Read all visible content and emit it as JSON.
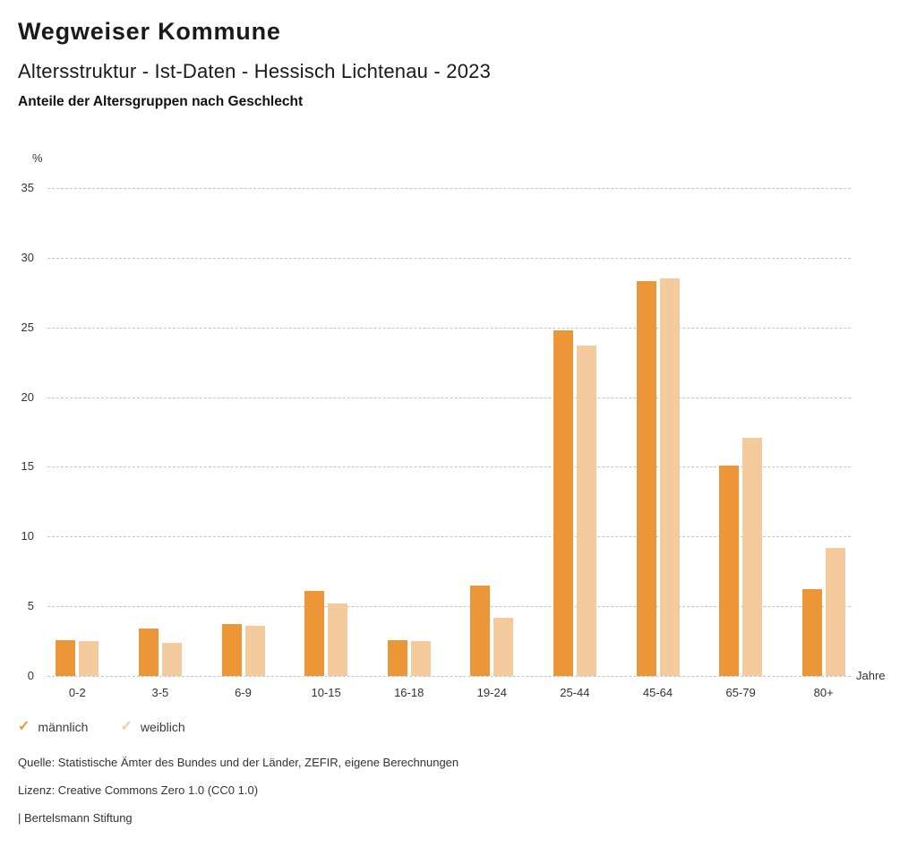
{
  "header": {
    "title": "Wegweiser Kommune",
    "subtitle": "Altersstruktur - Ist-Daten - Hessisch Lichtenau - 2023",
    "description": "Anteile der Altersgruppen nach Geschlecht"
  },
  "chart_data": {
    "type": "bar",
    "title": "Anteile der Altersgruppen nach Geschlecht",
    "categories": [
      "0-2",
      "3-5",
      "6-9",
      "10-15",
      "16-18",
      "19-24",
      "25-44",
      "45-64",
      "65-79",
      "80+"
    ],
    "series": [
      {
        "name": "männlich",
        "color": "#EC9637",
        "values": [
          2.6,
          3.4,
          3.7,
          6.1,
          2.6,
          6.5,
          24.8,
          28.3,
          15.1,
          6.2
        ]
      },
      {
        "name": "weiblich",
        "color": "#F4CB9C",
        "values": [
          2.5,
          2.4,
          3.6,
          5.2,
          2.5,
          4.2,
          23.7,
          28.5,
          17.1,
          9.2
        ]
      }
    ],
    "y_unit_label": "%",
    "x_unit_label": "Jahre",
    "ylim": [
      0,
      35
    ],
    "yticks": [
      0,
      5,
      10,
      15,
      20,
      25,
      30,
      35
    ],
    "grid": "horizontal-dashed",
    "legend_position": "bottom-left"
  },
  "legend": {
    "items": [
      {
        "label": "männlich",
        "icon": "check-icon",
        "glyph": "✓",
        "color": "#EC9637"
      },
      {
        "label": "weiblich",
        "icon": "check-icon",
        "glyph": "✓",
        "color": "#F4CB9C"
      }
    ]
  },
  "footer": {
    "source": "Quelle: Statistische Ämter des Bundes und der Länder, ZEFIR, eigene Berechnungen",
    "license": "Lizenz: Creative Commons Zero 1.0 (CC0 1.0)",
    "attribution": "| Bertelsmann Stiftung"
  }
}
